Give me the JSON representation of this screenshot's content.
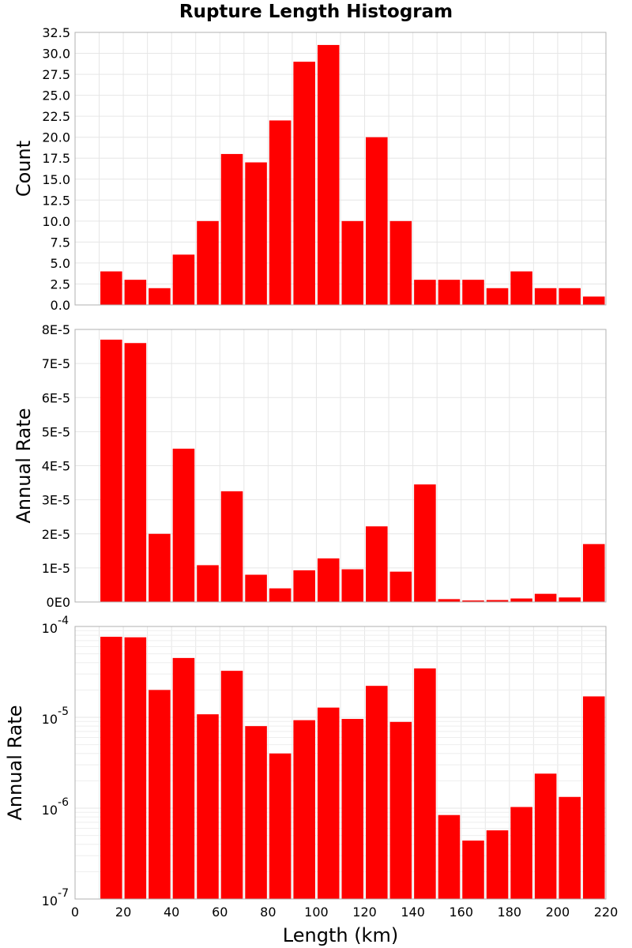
{
  "title": "Rupture Length Histogram",
  "colors": {
    "bar": "#ff0000",
    "grid": "#e6e6e6",
    "frame": "#b0b0b0"
  },
  "chart_data": [
    {
      "type": "bar",
      "name": "count",
      "ylabel": "Count",
      "xlim": [
        0,
        220
      ],
      "ylim": [
        0,
        32.5
      ],
      "yticks": [
        "0.0",
        "2.5",
        "5.0",
        "7.5",
        "10.0",
        "12.5",
        "15.0",
        "17.5",
        "20.0",
        "22.5",
        "25.0",
        "27.5",
        "30.0",
        "32.5"
      ],
      "ytick_values": [
        0,
        2.5,
        5,
        7.5,
        10,
        12.5,
        15,
        17.5,
        20,
        22.5,
        25,
        27.5,
        30,
        32.5
      ],
      "bin_width": 10,
      "x": [
        15,
        25,
        35,
        45,
        55,
        65,
        75,
        85,
        95,
        105,
        115,
        125,
        135,
        145,
        155,
        165,
        175,
        185,
        195,
        205,
        215
      ],
      "values": [
        4,
        3,
        2,
        6,
        10,
        18,
        17,
        22,
        29,
        31,
        10,
        20,
        10,
        3,
        3,
        3,
        2,
        4,
        2,
        2,
        1
      ],
      "grid": true
    },
    {
      "type": "bar",
      "name": "rate-linear",
      "ylabel": "Annual Rate",
      "xlim": [
        0,
        220
      ],
      "ylim": [
        0,
        8e-05
      ],
      "yticks": [
        "0E0",
        "1E-5",
        "2E-5",
        "3E-5",
        "4E-5",
        "5E-5",
        "6E-5",
        "7E-5",
        "8E-5"
      ],
      "ytick_values": [
        0,
        1e-05,
        2e-05,
        3e-05,
        4e-05,
        5e-05,
        6e-05,
        7e-05,
        8e-05
      ],
      "bin_width": 10,
      "x": [
        15,
        25,
        35,
        45,
        55,
        65,
        75,
        85,
        95,
        105,
        115,
        125,
        135,
        145,
        155,
        165,
        175,
        185,
        195,
        205,
        215
      ],
      "values": [
        7.7e-05,
        7.6e-05,
        2e-05,
        4.5e-05,
        1.08e-05,
        3.25e-05,
        8e-06,
        4e-06,
        9.3e-06,
        1.28e-05,
        9.6e-06,
        2.22e-05,
        8.9e-06,
        3.45e-05,
        8.4e-07,
        4.4e-07,
        5.7e-07,
        1.03e-06,
        2.4e-06,
        1.33e-06,
        1.7e-05
      ],
      "grid": true
    },
    {
      "type": "bar",
      "name": "rate-log",
      "ylabel": "Annual Rate",
      "xlabel": "Length (km)",
      "xlim": [
        0,
        220
      ],
      "xticks": [
        "0",
        "20",
        "40",
        "60",
        "80",
        "100",
        "120",
        "140",
        "160",
        "180",
        "200",
        "220"
      ],
      "xtick_values": [
        0,
        20,
        40,
        60,
        80,
        100,
        120,
        140,
        160,
        180,
        200,
        220
      ],
      "ylim": [
        1e-07,
        0.0001
      ],
      "yscale": "log",
      "yticks": [
        {
          "base": "10",
          "exp": "-4",
          "value": 0.0001
        },
        {
          "base": "10",
          "exp": "-5",
          "value": 1e-05
        },
        {
          "base": "10",
          "exp": "-6",
          "value": 1e-06
        },
        {
          "base": "10",
          "exp": "-7",
          "value": 1e-07
        }
      ],
      "bin_width": 10,
      "x": [
        15,
        25,
        35,
        45,
        55,
        65,
        75,
        85,
        95,
        105,
        115,
        125,
        135,
        145,
        155,
        165,
        175,
        185,
        195,
        205,
        215
      ],
      "values": [
        7.7e-05,
        7.6e-05,
        2e-05,
        4.5e-05,
        1.08e-05,
        3.25e-05,
        8e-06,
        4e-06,
        9.3e-06,
        1.28e-05,
        9.6e-06,
        2.22e-05,
        8.9e-06,
        3.45e-05,
        8.4e-07,
        4.4e-07,
        5.7e-07,
        1.03e-06,
        2.4e-06,
        1.33e-06,
        1.7e-05
      ],
      "grid": true
    }
  ]
}
